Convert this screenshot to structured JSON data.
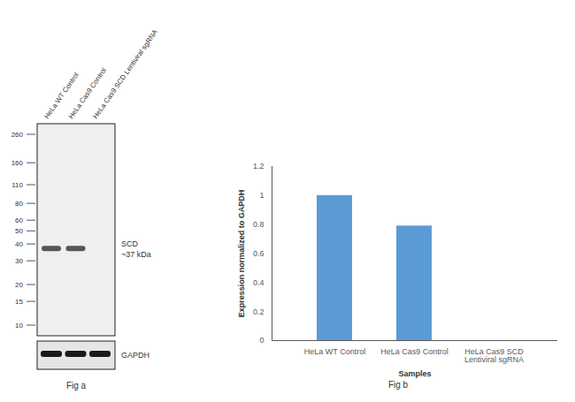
{
  "blot": {
    "title": "Fig a",
    "lanes": [
      "HeLa WT Control",
      "HeLa Cas9 Control",
      "HeLa Cas9 SCD Lentiviral sgRNA"
    ],
    "markers": [
      260,
      160,
      110,
      80,
      60,
      50,
      40,
      30,
      20,
      15,
      10
    ],
    "bands": [
      {
        "label": "SCD",
        "size_label": "~37 kDa",
        "kda": 37,
        "present": [
          true,
          true,
          false
        ]
      },
      {
        "label": "GAPDH",
        "present": [
          true,
          true,
          true
        ]
      }
    ]
  },
  "chart_data": {
    "type": "bar",
    "title": "Fig b",
    "x_label": "Samples",
    "y_label": "Expression normalized to GAPDH",
    "categories": [
      "HeLa WT Control",
      "HeLa Cas9 Control",
      "HeLa Cas9 SCD Lentiviral sgRNA"
    ],
    "values": [
      1,
      0.79,
      0
    ],
    "color": "#5b9bd5",
    "ylim": [
      0,
      1.2
    ],
    "yticks": [
      0,
      0.2,
      0.4,
      0.6,
      0.8,
      1,
      1.2
    ],
    "grid": false
  }
}
